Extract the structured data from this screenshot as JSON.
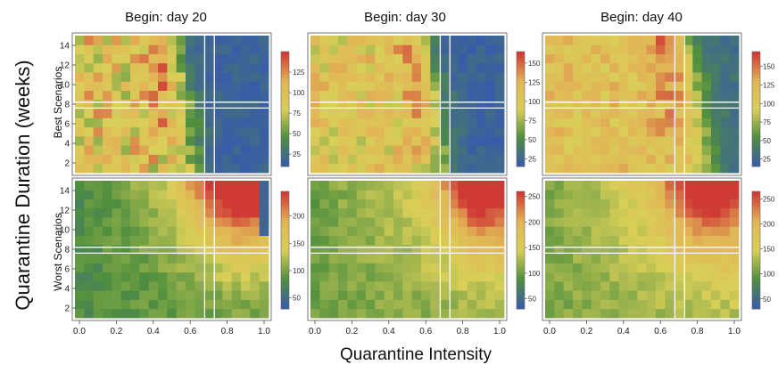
{
  "chart_data": {
    "type": "heatmap",
    "xlabel": "Quarantine Intensity",
    "ylabel": "Quarantine Duration (weeks)",
    "row_labels": [
      "Best Scenarios",
      "Worst Scenarios"
    ],
    "column_titles": [
      "Begin: day 20",
      "Begin: day 30",
      "Begin: day 40"
    ],
    "x_ticks": [
      "0.0",
      "0.2",
      "0.4",
      "0.6",
      "0.8",
      "1.0"
    ],
    "y_ticks": [
      "2",
      "4",
      "6",
      "8",
      "10",
      "12",
      "14"
    ],
    "xlim": [
      0.0,
      1.0
    ],
    "ylim": [
      1,
      15
    ],
    "grid_size": [
      21,
      15
    ],
    "marker_lines": {
      "intensity": [
        0.67,
        0.72
      ],
      "duration_weeks": [
        7.6,
        8.2
      ]
    },
    "colormap": [
      "#3a5ca8",
      "#4f8f3e",
      "#d8cf58",
      "#e2b556",
      "#cf3a35"
    ],
    "panels": [
      {
        "row": "Best Scenarios",
        "begin_day": 20,
        "colorbar_ticks": [
          25,
          50,
          75,
          100,
          125
        ],
        "colorbar_range": [
          10,
          150
        ],
        "description": "mostly ~100 for intensity below 0.5, red peak (~140) near intensity 0.5 at long durations, falls to ~15 for intensity above 0.65"
      },
      {
        "row": "Best Scenarios",
        "begin_day": 30,
        "colorbar_ticks": [
          25,
          50,
          75,
          100,
          125,
          150
        ],
        "colorbar_range": [
          15,
          165
        ],
        "description": "mostly ~100-110, red peak (~160) near intensity 0.55 at long durations, ~20 for intensity above 0.7"
      },
      {
        "row": "Best Scenarios",
        "begin_day": 40,
        "colorbar_ticks": [
          25,
          50,
          75,
          100,
          125,
          150
        ],
        "colorbar_range": [
          15,
          170
        ],
        "description": "mostly ~110-125, red peak (~165) near intensity 0.65, ~30 for intensity above 0.85"
      },
      {
        "row": "Worst Scenarios",
        "begin_day": 20,
        "colorbar_ticks": [
          50,
          100,
          150,
          200
        ],
        "colorbar_range": [
          30,
          245
        ],
        "description": "rises with intensity and duration, peak ~240 near intensity 0.8-0.9 and 12-15 weeks, drop at intensity 1.0"
      },
      {
        "row": "Worst Scenarios",
        "begin_day": 30,
        "colorbar_ticks": [
          50,
          100,
          150,
          200,
          250
        ],
        "colorbar_range": [
          30,
          260
        ],
        "description": "mostly ~120-160, peak ~250 near intensity 0.9 and 14-15 weeks"
      },
      {
        "row": "Worst Scenarios",
        "begin_day": 40,
        "colorbar_ticks": [
          50,
          100,
          150,
          200,
          250
        ],
        "colorbar_range": [
          30,
          265
        ],
        "description": "mostly ~120-170, peak ~250 near intensity 0.8-0.9 and 13-15 weeks"
      }
    ]
  }
}
